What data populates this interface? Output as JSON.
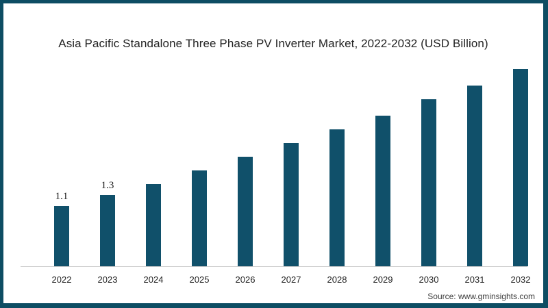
{
  "page": {
    "title": "Asia Pacific Standalone Three Phase PV Inverter Market, 2022-2032 (USD Billion)",
    "source_credit": "Source: www.gminsights.com"
  },
  "colors": {
    "bar": "#10506a",
    "frame_border": "#0d4d63",
    "axis_line": "#cccccc",
    "title_text": "#222222",
    "source_text": "#3c3c3c"
  },
  "chart_data": {
    "type": "bar",
    "title": "Asia Pacific Standalone Three Phase PV Inverter Market, 2022-2032 (USD Billion)",
    "categories": [
      "2022",
      "2023",
      "2024",
      "2025",
      "2026",
      "2027",
      "2028",
      "2029",
      "2030",
      "2031",
      "2032"
    ],
    "values": [
      1.1,
      1.3,
      1.5,
      1.75,
      2.0,
      2.25,
      2.5,
      2.75,
      3.05,
      3.3,
      3.6
    ],
    "data_labels": [
      "1.1",
      "1.3",
      "",
      "",
      "",
      "",
      "",
      "",
      "",
      "",
      ""
    ],
    "xlabel": "",
    "ylabel": "",
    "ylim": [
      0,
      4.2
    ],
    "y_axis_visible": false,
    "x_axis_line_visible": true,
    "gridlines": false,
    "legend": "none",
    "bar_color": "#10506a"
  }
}
